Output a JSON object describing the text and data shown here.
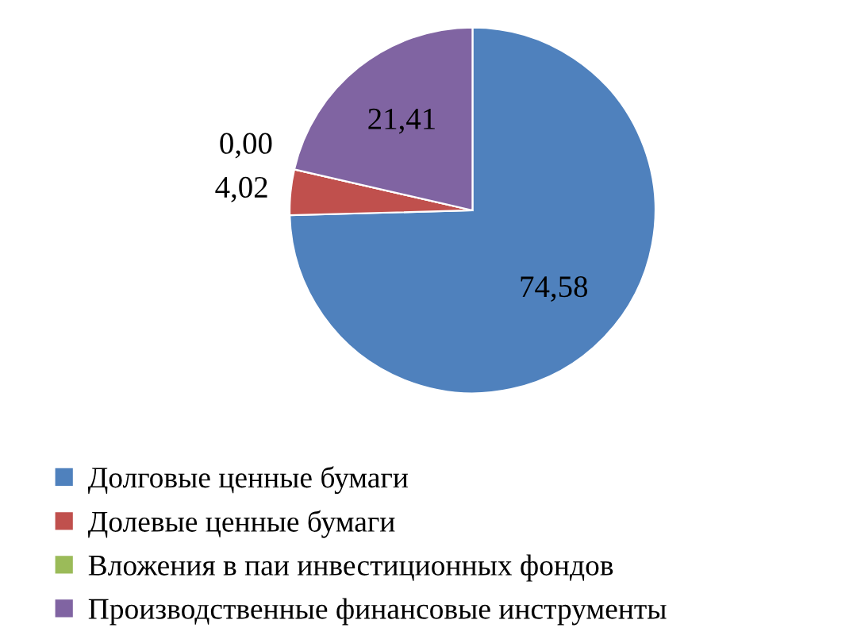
{
  "chart_data": {
    "type": "pie",
    "categories": [
      "Долговые ценные бумаги",
      "Долевые ценные бумаги",
      "Вложения в паи инвестиционных фондов",
      "Производственные финансовые инструменты"
    ],
    "values": [
      74.58,
      4.02,
      0.0,
      21.41
    ],
    "colors": [
      "#4f81bd",
      "#c0504d",
      "#9bbb59",
      "#8064a2"
    ],
    "value_labels": [
      "74,58",
      "4,02",
      "0,00",
      "21,41"
    ],
    "legend": "bottom"
  }
}
